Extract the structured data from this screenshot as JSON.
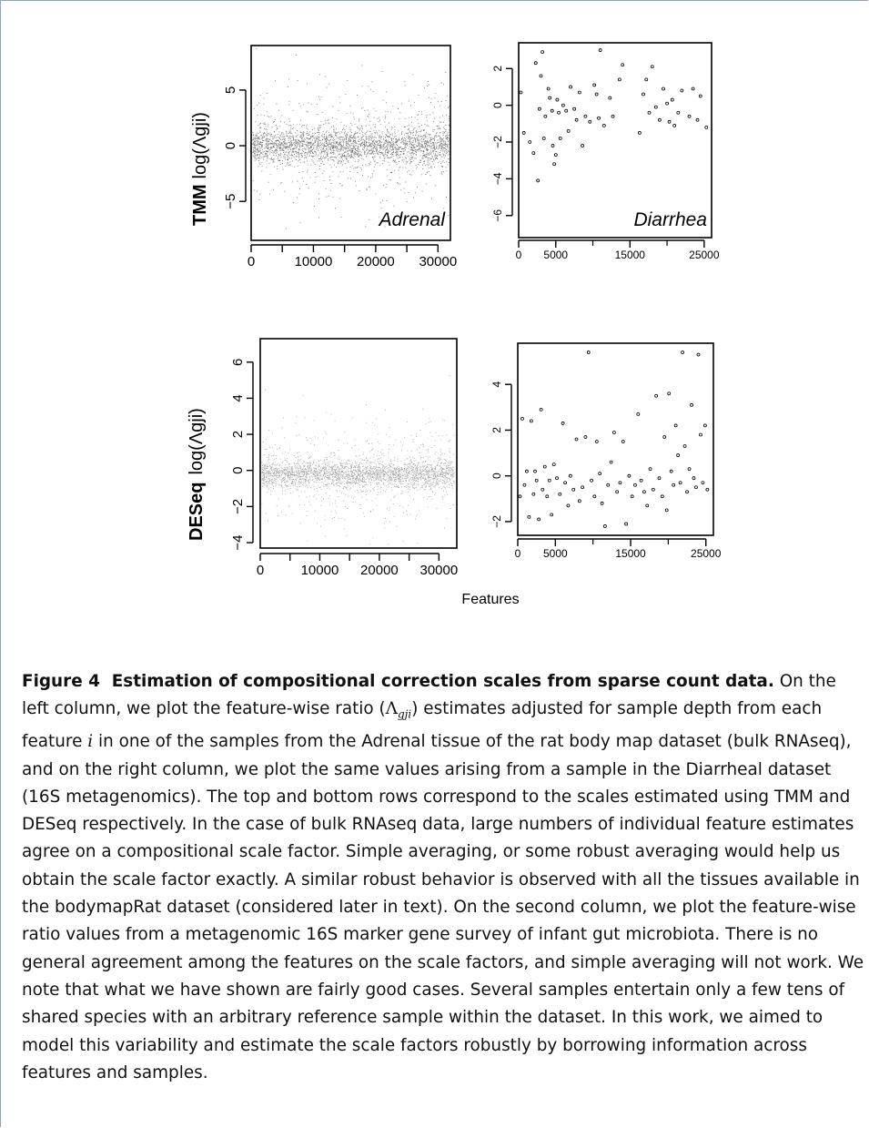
{
  "figure": {
    "x_axis_label": "Features",
    "panels": [
      {
        "id": "tmm-adrenal",
        "row_label_bold": "TMM",
        "row_label_expr": "log(Λgji)",
        "panel_label": "Adrenal",
        "xlim": [
          0,
          32000
        ],
        "ylim": [
          -8.5,
          9
        ],
        "x_ticks": [
          0,
          10000,
          20000,
          30000
        ],
        "y_ticks": [
          -5,
          0,
          5
        ]
      },
      {
        "id": "tmm-diarrhea",
        "panel_label": "Diarrhea",
        "xlim": [
          0,
          26000
        ],
        "ylim": [
          -7.2,
          3.4
        ],
        "x_ticks": [
          0,
          5000,
          15000,
          25000
        ],
        "y_ticks": [
          -6,
          -4,
          -2,
          0,
          2
        ]
      },
      {
        "id": "deseq-adrenal",
        "row_label_bold": "DESeq",
        "row_label_expr": "log(Λgji)",
        "xlim": [
          0,
          33000
        ],
        "ylim": [
          -4.3,
          7.3
        ],
        "x_ticks": [
          0,
          10000,
          20000,
          30000
        ],
        "y_ticks": [
          -4,
          -2,
          0,
          2,
          4,
          6
        ]
      },
      {
        "id": "deseq-diarrhea",
        "xlim": [
          0,
          26000
        ],
        "ylim": [
          -2.6,
          5.8
        ],
        "x_ticks": [
          0,
          5000,
          15000,
          25000
        ],
        "y_ticks": [
          -2,
          0,
          2,
          4
        ]
      }
    ]
  },
  "chart_data": [
    {
      "type": "scatter",
      "title": "",
      "xlabel": "Features",
      "ylabel": "TMM log(Λgji)",
      "xlim": [
        0,
        32000
      ],
      "ylim": [
        -8.5,
        9
      ],
      "series": [
        {
          "name": "Adrenal",
          "summary": "~32000 features, dense band centered near 0 (spread about ±2), sparse points between -8 and 8"
        }
      ]
    },
    {
      "type": "scatter",
      "title": "",
      "xlabel": "Features",
      "ylabel": "TMM log(Λgji)",
      "xlim": [
        0,
        26000
      ],
      "ylim": [
        -7.2,
        3.4
      ],
      "series": [
        {
          "name": "Diarrhea",
          "x": [
            300,
            700,
            1500,
            2000,
            2300,
            2600,
            2800,
            3000,
            3200,
            3400,
            3600,
            4000,
            4200,
            4500,
            4600,
            4800,
            5000,
            5200,
            5400,
            5600,
            6000,
            6400,
            6700,
            7000,
            7500,
            7800,
            8200,
            8600,
            9000,
            9600,
            10200,
            10500,
            10800,
            11000,
            11500,
            12300,
            12700,
            13600,
            14000,
            16300,
            16800,
            17200,
            17600,
            18000,
            18500,
            19000,
            19500,
            20000,
            20300,
            20700,
            21000,
            21500,
            22000,
            23000,
            23500,
            24100,
            24500,
            25300
          ],
          "y": [
            0.7,
            -1.5,
            -2.0,
            -2.6,
            2.3,
            -4.1,
            -0.2,
            1.6,
            2.9,
            -1.8,
            -0.6,
            0.9,
            0.4,
            -0.3,
            -2.2,
            -3.2,
            -2.7,
            0.3,
            -0.4,
            -1.8,
            0.0,
            -0.3,
            -1.4,
            1.0,
            -0.2,
            -0.8,
            0.7,
            -2.2,
            -0.6,
            -0.9,
            1.1,
            0.6,
            -0.7,
            3.0,
            -1.1,
            0.4,
            -0.6,
            1.4,
            2.2,
            -1.5,
            0.6,
            1.4,
            -0.4,
            2.1,
            -0.1,
            -0.8,
            0.9,
            0.1,
            -0.9,
            0.3,
            -1.1,
            -0.4,
            0.8,
            -0.6,
            0.9,
            -0.8,
            0.5,
            -1.2
          ]
        }
      ]
    },
    {
      "type": "scatter",
      "title": "",
      "xlabel": "Features",
      "ylabel": "DESeq log(Λgji)",
      "xlim": [
        0,
        33000
      ],
      "ylim": [
        -4.3,
        7.3
      ],
      "series": [
        {
          "name": "Adrenal",
          "summary": "~32000 features, dense band centered near -0.2 (spread about ±1), sparse points between -4 and 6"
        }
      ]
    },
    {
      "type": "scatter",
      "title": "",
      "xlabel": "Features",
      "ylabel": "DESeq log(Λgji)",
      "xlim": [
        0,
        26000
      ],
      "ylim": [
        -2.6,
        5.8
      ],
      "series": [
        {
          "name": "Diarrhea",
          "x": [
            300,
            600,
            900,
            1200,
            1500,
            1800,
            2100,
            2300,
            2500,
            2800,
            3100,
            3300,
            3600,
            3900,
            4200,
            4500,
            4800,
            5200,
            5600,
            6000,
            6300,
            6700,
            7000,
            7400,
            7800,
            8200,
            8600,
            9000,
            9400,
            9800,
            10200,
            10500,
            10900,
            11200,
            11600,
            12000,
            12400,
            12800,
            13200,
            13600,
            14000,
            14400,
            14800,
            15200,
            15600,
            16000,
            16400,
            16800,
            17200,
            17600,
            18000,
            18400,
            18800,
            19200,
            19500,
            19800,
            20100,
            20400,
            20700,
            21000,
            21300,
            21600,
            21900,
            22200,
            22500,
            22800,
            23100,
            23400,
            23700,
            24000,
            24300,
            24600,
            24900,
            25200
          ],
          "y": [
            -0.9,
            2.5,
            -0.4,
            0.2,
            -1.8,
            2.4,
            -0.8,
            0.2,
            -0.2,
            -1.9,
            2.9,
            -0.6,
            0.4,
            -0.9,
            -0.2,
            -1.7,
            0.5,
            -0.1,
            -0.8,
            2.3,
            -0.3,
            -1.3,
            0.0,
            -0.6,
            1.6,
            -1.1,
            -0.5,
            1.7,
            5.4,
            -0.2,
            -0.9,
            1.5,
            0.1,
            -1.2,
            -2.2,
            -0.4,
            0.6,
            1.9,
            -0.7,
            -0.3,
            1.5,
            -2.1,
            0.0,
            -0.9,
            -0.4,
            2.7,
            -0.2,
            -0.7,
            -1.3,
            0.3,
            -0.6,
            3.5,
            -0.1,
            -0.9,
            1.7,
            -1.5,
            3.6,
            0.2,
            -0.4,
            2.2,
            0.9,
            -0.3,
            5.4,
            1.3,
            -0.7,
            0.3,
            3.1,
            -0.1,
            -0.5,
            5.3,
            1.8,
            -0.3,
            2.2,
            -0.6
          ]
        }
      ]
    }
  ],
  "caption": {
    "figure_label": "Figure 4",
    "title": "Estimation of compositional correction scales from sparse count data.",
    "body_1": "On the left column, we plot the feature-wise ratio (",
    "body_lambda": "Λ",
    "body_lambda_sub": "gji",
    "body_2": ") estimates adjusted for sample depth from each feature ",
    "body_var": "i",
    "body_3": " in one of the samples from the Adrenal tissue of the rat body map dataset (bulk RNAseq), and on the right column, we plot the same values arising from a sample in the Diarrheal dataset (16S metagenomics). The top and bottom rows correspond to the scales estimated using TMM and DESeq respectively. In the case of bulk RNAseq data, large numbers of individual feature estimates agree on a compositional scale factor. Simple averaging, or some robust averaging would help us obtain the scale factor exactly. A similar robust behavior is observed with all the tissues available in the bodymapRat dataset (considered later in text). On the second column, we plot the feature-wise ratio values from a metagenomic 16S marker gene survey of infant gut microbiota. There is no general agreement among the features on the scale factors, and simple averaging will not work. We note that what we have shown are fairly good cases. Several samples entertain only a few tens of shared species with an arbitrary reference sample within the dataset. In this work, we aimed to model this variability and estimate the scale factors robustly by borrowing information across features and samples."
  }
}
